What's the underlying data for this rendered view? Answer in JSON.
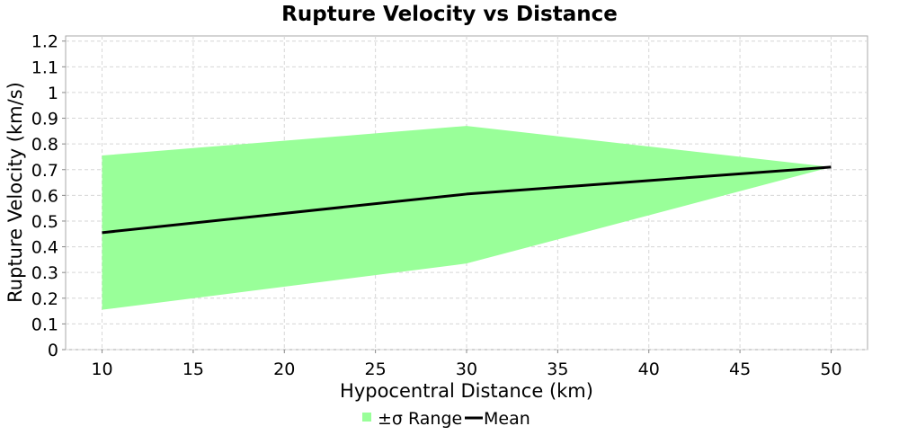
{
  "chart_data": {
    "type": "area",
    "title": "Rupture Velocity vs Distance",
    "xlabel": "Hypocentral Distance (km)",
    "ylabel": "Rupture Velocity (km/s)",
    "xlim": [
      8,
      52
    ],
    "ylim": [
      0,
      1.22
    ],
    "xticks": [
      10,
      15,
      20,
      25,
      30,
      35,
      40,
      45,
      50
    ],
    "yticks": [
      0,
      0.1,
      0.2,
      0.3,
      0.4,
      0.5,
      0.6,
      0.7,
      0.8,
      0.9,
      1,
      1.1,
      1.2
    ],
    "grid": true,
    "legend_position": "bottom-center",
    "x": [
      10,
      30,
      50
    ],
    "series": [
      {
        "name": "±σ Range",
        "kind": "band",
        "lower": [
          0.155,
          0.335,
          0.71
        ],
        "upper": [
          0.755,
          0.87,
          0.71
        ],
        "color": "#99ff99"
      },
      {
        "name": "Mean",
        "kind": "line",
        "values": [
          0.455,
          0.605,
          0.71
        ],
        "color": "#000000"
      }
    ]
  }
}
